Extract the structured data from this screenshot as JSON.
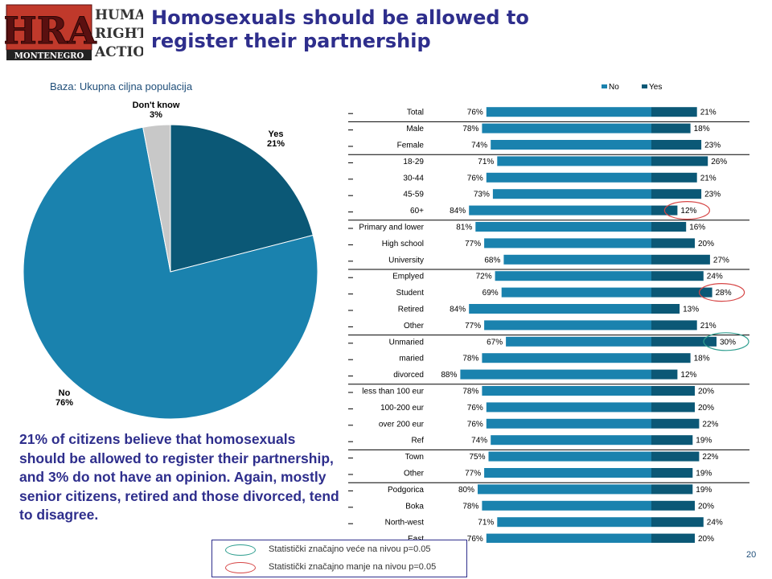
{
  "logo": {
    "letters": "HRA",
    "words": [
      "HUMAN",
      "RIGHTS",
      "ACTION"
    ],
    "banner": "MONTENEGRO"
  },
  "title": "Homosexuals should be allowed to register their partnership",
  "base_label": "Baza: Ukupna ciljna populacija",
  "summary": "21% of citizens believe that homosexuals should be allowed to register their partnership, and 3% do not have an opinion. Again, mostly senior citizens, retired and those divorced, tend to disagree.",
  "legend_significance": {
    "higher": "Statistički značajno veće na nivou p=0.05",
    "lower": "Statistički značajno manje na nivou p=0.05"
  },
  "page_number": "20",
  "colors": {
    "no": "#1A82AE",
    "yes": "#0B5876",
    "dontknow": "#C8C8C8",
    "title": "#2E2E8C",
    "higher_marker": "#2E9E8F",
    "lower_marker": "#D64545"
  },
  "chart_data": [
    {
      "type": "pie",
      "slices": [
        {
          "label": "Yes",
          "value": 21,
          "value_label": "21%"
        },
        {
          "label": "No",
          "value": 76,
          "value_label": "76%"
        },
        {
          "label": "Don't know",
          "value": 3,
          "value_label": "3%"
        }
      ]
    },
    {
      "type": "bar",
      "orientation": "horizontal",
      "legend": [
        "No",
        "Yes"
      ],
      "legend_position": "top-right",
      "categories": [
        "Total",
        "Male",
        "Female",
        "18-29",
        "30-44",
        "45-59",
        "60+",
        "Primary and lower",
        "High school",
        "University",
        "Emplyed",
        "Student",
        "Retired",
        "Other",
        "Unmaried",
        "maried",
        "divorced",
        "less than 100 eur",
        "100-200 eur",
        "over 200 eur",
        "Ref",
        "Town",
        "Other",
        "Podgorica",
        "Boka",
        "North-west",
        "East"
      ],
      "group_breaks_after": [
        0,
        2,
        6,
        9,
        13,
        16,
        20,
        22
      ],
      "series": [
        {
          "name": "No",
          "values": [
            76,
            78,
            74,
            71,
            76,
            73,
            84,
            81,
            77,
            68,
            72,
            69,
            84,
            77,
            67,
            78,
            88,
            78,
            76,
            76,
            74,
            75,
            77,
            80,
            78,
            71,
            76
          ]
        },
        {
          "name": "Yes",
          "values": [
            21,
            18,
            23,
            26,
            21,
            23,
            12,
            16,
            20,
            27,
            24,
            28,
            13,
            21,
            30,
            18,
            12,
            20,
            20,
            22,
            19,
            22,
            19,
            19,
            20,
            24,
            20
          ]
        }
      ],
      "significance_markers": [
        {
          "category_index": 6,
          "series": "Yes",
          "type": "lower"
        },
        {
          "category_index": 11,
          "series": "Yes",
          "type": "lower"
        },
        {
          "category_index": 14,
          "series": "Yes",
          "type": "higher"
        }
      ]
    }
  ]
}
